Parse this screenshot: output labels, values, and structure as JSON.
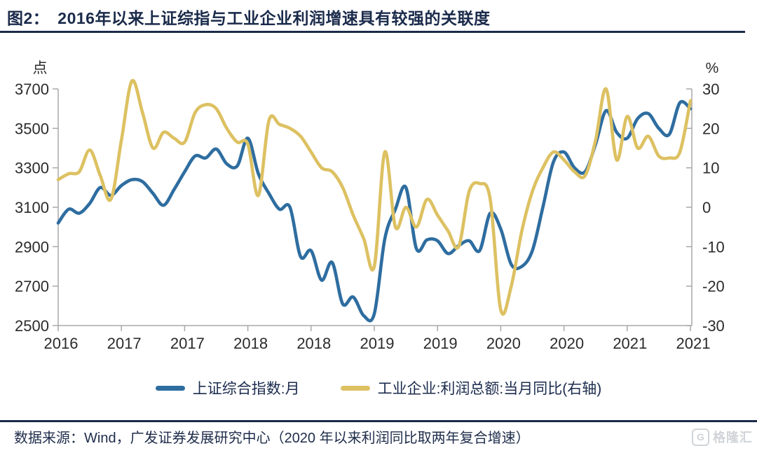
{
  "header": {
    "figure_label": "图2：",
    "title": "2016年以来上证综指与工业企业利润增速具有较强的关联度"
  },
  "footer": {
    "source_text": "数据来源：Wind，广发证券发展研究中心（2020 年以来利润同比取两年复合增速）"
  },
  "watermark": {
    "icon_letter": "G",
    "text": "格隆汇"
  },
  "colors": {
    "title_navy": "#1a2a4a",
    "index_blue": "#2e6da0",
    "profit_gold": "#ddc162",
    "axis_gray": "#a8a8a8"
  },
  "chart_data": {
    "type": "line",
    "title": "2016年以来上证综指与工业企业利润增速具有较强的关联度",
    "grid": false,
    "legend_position": "bottom",
    "left_axis": {
      "unit": "点",
      "min": 2500,
      "max": 3700,
      "ticks": [
        3700,
        3500,
        3300,
        3100,
        2900,
        2700,
        2500
      ]
    },
    "right_axis": {
      "unit": "%",
      "min": -30,
      "max": 30,
      "ticks": [
        30,
        20,
        10,
        0,
        -10,
        -20,
        -30
      ]
    },
    "x_tick_labels": [
      "2016",
      "2017",
      "2017",
      "2018",
      "2018",
      "2019",
      "2019",
      "2020",
      "2020",
      "2021",
      "2021"
    ],
    "x": [
      "2016-07",
      "2016-08",
      "2016-09",
      "2016-10",
      "2016-11",
      "2016-12",
      "2017-01",
      "2017-02",
      "2017-03",
      "2017-04",
      "2017-05",
      "2017-06",
      "2017-07",
      "2017-08",
      "2017-09",
      "2017-10",
      "2017-11",
      "2017-12",
      "2018-01",
      "2018-02",
      "2018-03",
      "2018-04",
      "2018-05",
      "2018-06",
      "2018-07",
      "2018-08",
      "2018-09",
      "2018-10",
      "2018-11",
      "2018-12",
      "2019-01",
      "2019-02",
      "2019-03",
      "2019-04",
      "2019-05",
      "2019-06",
      "2019-07",
      "2019-08",
      "2019-09",
      "2019-10",
      "2019-11",
      "2019-12",
      "2020-01",
      "2020-02",
      "2020-03",
      "2020-04",
      "2020-05",
      "2020-06",
      "2020-07",
      "2020-08",
      "2020-09",
      "2020-10",
      "2020-11",
      "2020-12",
      "2021-01",
      "2021-02",
      "2021-03",
      "2021-04",
      "2021-05",
      "2021-06",
      "2021-07"
    ],
    "series": [
      {
        "name": "上证综合指数:月",
        "axis": "left",
        "color": "#2e6da0",
        "values": [
          3020,
          3090,
          3070,
          3120,
          3200,
          3160,
          3210,
          3240,
          3230,
          3170,
          3110,
          3190,
          3280,
          3360,
          3350,
          3395,
          3320,
          3310,
          3450,
          3270,
          3170,
          3090,
          3100,
          2850,
          2880,
          2730,
          2820,
          2610,
          2645,
          2550,
          2560,
          2940,
          3090,
          3200,
          2890,
          2935,
          2930,
          2865,
          2905,
          2930,
          2880,
          3070,
          2990,
          2810,
          2800,
          2880,
          3100,
          3330,
          3380,
          3300,
          3280,
          3420,
          3590,
          3480,
          3450,
          3550,
          3575,
          3500,
          3470,
          3630,
          3600
        ]
      },
      {
        "name": "工业企业:利润总额:当月同比(右轴)",
        "axis": "right",
        "color": "#ddc162",
        "values": [
          7,
          8.5,
          9,
          14.5,
          8,
          2,
          17,
          32,
          24,
          15,
          19,
          17.5,
          16.5,
          24,
          26,
          25,
          20,
          16.5,
          16,
          3,
          22,
          21,
          20,
          18,
          14,
          10,
          9,
          5,
          -2,
          -8,
          -15,
          14,
          -5,
          0,
          -5,
          2,
          -2,
          -6,
          -10,
          4,
          6,
          2,
          -26,
          -20,
          -6,
          4,
          10,
          14,
          12,
          9,
          8,
          17,
          30,
          12,
          23,
          15,
          18,
          13,
          12.5,
          14,
          27
        ]
      }
    ]
  }
}
